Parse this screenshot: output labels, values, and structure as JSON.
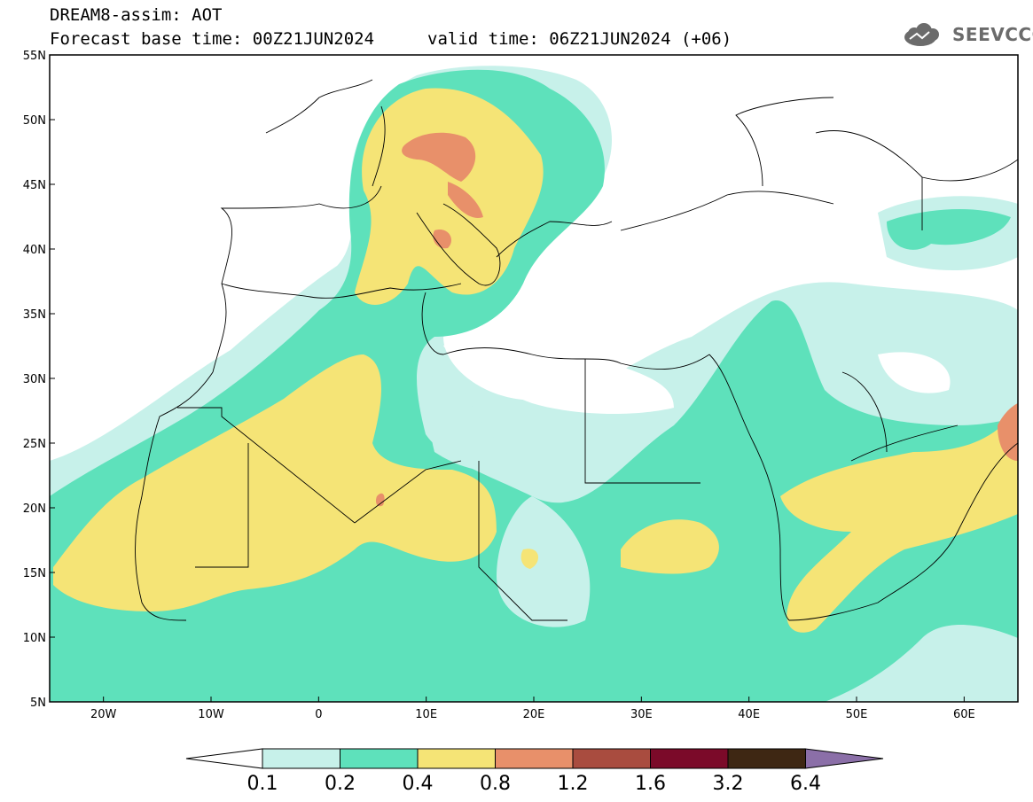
{
  "title": {
    "line1": "DREAM8-assim: AOT",
    "line2_left": "Forecast base time: 00Z21JUN2024",
    "line2_right": "valid time: 06Z21JUN2024 (+06)"
  },
  "logo": {
    "text": "SEEVCCC",
    "icon": "cloud-icon"
  },
  "map": {
    "lon_range": [
      -25,
      65
    ],
    "lat_range": [
      5,
      55
    ],
    "lat_ticks": [
      "55N",
      "50N",
      "45N",
      "40N",
      "35N",
      "30N",
      "25N",
      "20N",
      "15N",
      "10N",
      "5N"
    ],
    "lon_ticks": [
      "20W",
      "10W",
      "0",
      "10E",
      "20E",
      "30E",
      "40E",
      "50E",
      "60E"
    ]
  },
  "colorbar": {
    "labels": [
      "0.1",
      "0.2",
      "0.4",
      "0.8",
      "1.2",
      "1.6",
      "3.2",
      "6.4"
    ],
    "colors": [
      "#c7f1ea",
      "#5ee1bb",
      "#f5e476",
      "#e8906a",
      "#a94c3f",
      "#7b0a29",
      "#3e2713",
      "#8b6fa8"
    ]
  }
}
